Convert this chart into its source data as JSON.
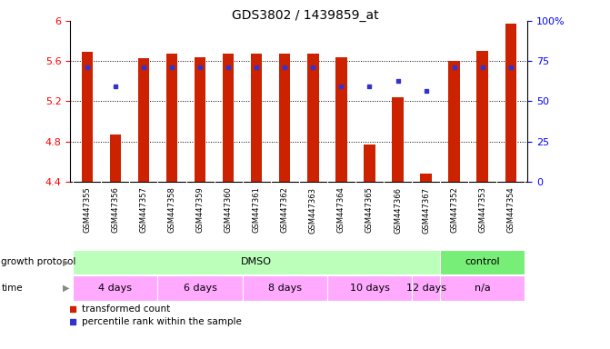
{
  "title": "GDS3802 / 1439859_at",
  "samples": [
    "GSM447355",
    "GSM447356",
    "GSM447357",
    "GSM447358",
    "GSM447359",
    "GSM447360",
    "GSM447361",
    "GSM447362",
    "GSM447363",
    "GSM447364",
    "GSM447365",
    "GSM447366",
    "GSM447367",
    "GSM447352",
    "GSM447353",
    "GSM447354"
  ],
  "bar_heights": [
    5.69,
    4.87,
    5.63,
    5.67,
    5.64,
    5.67,
    5.67,
    5.67,
    5.67,
    5.64,
    4.77,
    5.24,
    4.48,
    5.6,
    5.7,
    5.97
  ],
  "blue_values_y": [
    5.54,
    5.35,
    5.54,
    5.54,
    5.54,
    5.54,
    5.54,
    5.54,
    5.54,
    5.35,
    5.35,
    5.4,
    5.3,
    5.54,
    5.54,
    5.54
  ],
  "ylim_left": [
    4.4,
    6.0
  ],
  "ylim_right": [
    0,
    100
  ],
  "yticks_left": [
    4.4,
    4.8,
    5.2,
    5.6,
    6.0
  ],
  "ytick_labels_left": [
    "4.4",
    "4.8",
    "5.2",
    "5.6",
    "6"
  ],
  "yticks_right": [
    0,
    25,
    50,
    75,
    100
  ],
  "ytick_labels_right": [
    "0",
    "25",
    "50",
    "75",
    "100%"
  ],
  "bar_color": "#cc2200",
  "blue_color": "#3333cc",
  "grid_lines": [
    4.8,
    5.2,
    5.6
  ],
  "protocol_groups": [
    {
      "label": "DMSO",
      "start": 0,
      "end": 12,
      "color": "#bbffbb"
    },
    {
      "label": "control",
      "start": 13,
      "end": 15,
      "color": "#77ee77"
    }
  ],
  "time_groups": [
    {
      "label": "4 days",
      "start": 0,
      "end": 2
    },
    {
      "label": "6 days",
      "start": 3,
      "end": 5
    },
    {
      "label": "8 days",
      "start": 6,
      "end": 8
    },
    {
      "label": "10 days",
      "start": 9,
      "end": 11
    },
    {
      "label": "12 days",
      "start": 12,
      "end": 12
    },
    {
      "label": "n/a",
      "start": 13,
      "end": 15
    }
  ],
  "time_color": "#ffaaff",
  "legend_items": [
    {
      "label": "transformed count",
      "color": "#cc2200"
    },
    {
      "label": "percentile rank within the sample",
      "color": "#3333cc"
    }
  ],
  "bar_width": 0.4,
  "ticklabel_bg": "#cccccc"
}
